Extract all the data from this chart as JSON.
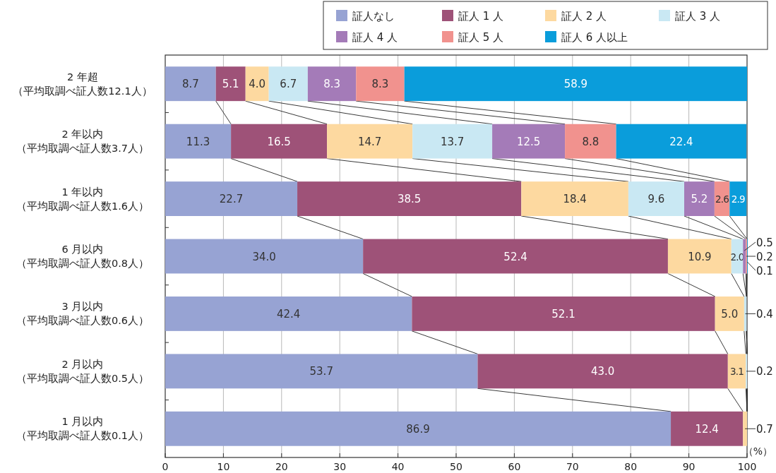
{
  "chart_data": {
    "type": "bar",
    "orientation": "horizontal",
    "stacked": true,
    "categories": [
      "2 年超（平均取調べ証人数12.1人）",
      "2 年以内（平均取調べ証人数3.7人）",
      "1 年以内（平均取調べ証人数1.6人）",
      "6 月以内（平均取調べ証人数0.8人）",
      "3 月以内（平均取調べ証人数0.6人）",
      "2 月以内（平均取調べ証人数0.5人）",
      "1 月以内（平均取調べ証人数0.1人）"
    ],
    "series": [
      {
        "name": "証人なし",
        "color": "#97a3d3",
        "values": [
          8.7,
          11.3,
          22.7,
          34.0,
          42.4,
          53.7,
          86.9
        ],
        "value_labels": [
          "8.7",
          "11.3",
          "22.7",
          "34.0",
          "42.4",
          "53.7",
          "86.9"
        ]
      },
      {
        "name": "証人 1 人",
        "color": "#9e5278",
        "values": [
          5.1,
          16.5,
          38.5,
          52.4,
          52.1,
          43.0,
          12.4
        ],
        "value_labels": [
          "5.1",
          "16.5",
          "38.5",
          "52.4",
          "52.1",
          "43.0",
          "12.4"
        ]
      },
      {
        "name": "証人 2 人",
        "color": "#fdd9a0",
        "values": [
          4.0,
          14.7,
          18.4,
          10.9,
          5.0,
          3.1,
          0.7
        ],
        "value_labels": [
          "4.0",
          "14.7",
          "18.4",
          "10.9",
          "5.0",
          "3.1",
          "0.7"
        ]
      },
      {
        "name": "証人 3 人",
        "color": "#c9e8f3",
        "values": [
          6.7,
          13.7,
          9.6,
          2.0,
          0.4,
          0.2,
          null
        ],
        "value_labels": [
          "6.7",
          "13.7",
          "9.6",
          "2.0",
          "0.4",
          "0.2",
          null
        ]
      },
      {
        "name": "証人 4 人",
        "color": "#a47bb8",
        "values": [
          8.3,
          12.5,
          5.2,
          0.5,
          null,
          null,
          null
        ],
        "value_labels": [
          "8.3",
          "12.5",
          "5.2",
          "0.5",
          null,
          null,
          null
        ]
      },
      {
        "name": "証人 5 人",
        "color": "#f1928e",
        "values": [
          8.3,
          8.8,
          2.6,
          0.2,
          null,
          null,
          null
        ],
        "value_labels": [
          "8.3",
          "8.8",
          "2.6",
          "0.2",
          null,
          null,
          null
        ]
      },
      {
        "name": "証人 6 人以上",
        "color": "#0a9ddb",
        "values": [
          58.9,
          22.4,
          2.9,
          0.1,
          null,
          null,
          null
        ],
        "value_labels": [
          "58.9",
          "22.4",
          "2.9",
          "0.1",
          null,
          null,
          null
        ]
      }
    ],
    "xlim": [
      0,
      100
    ],
    "xticks": [
      0,
      10,
      20,
      30,
      40,
      50,
      60,
      70,
      80,
      90,
      100
    ],
    "xlabel": "（%）",
    "grid": "x",
    "legend": "top"
  }
}
